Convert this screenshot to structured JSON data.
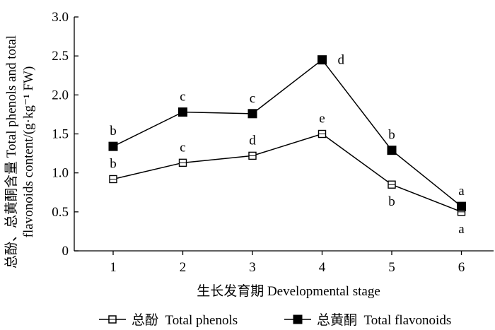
{
  "chart_data": {
    "type": "line",
    "categories": [
      "1",
      "2",
      "3",
      "4",
      "5",
      "6"
    ],
    "series": [
      {
        "name": "总酚  Total phenols",
        "marker": "open-square",
        "values": [
          0.92,
          1.13,
          1.22,
          1.5,
          0.85,
          0.5
        ],
        "letters": [
          "b",
          "c",
          "d",
          "e",
          "b",
          "a"
        ],
        "letter_placement": [
          "above",
          "above",
          "above",
          "above",
          "below",
          "below"
        ]
      },
      {
        "name": "总黄酮  Total flavonoids",
        "marker": "filled-square",
        "values": [
          1.34,
          1.78,
          1.76,
          2.45,
          1.29,
          0.57
        ],
        "letters": [
          "b",
          "c",
          "c",
          "d",
          "b",
          "a"
        ],
        "letter_placement": [
          "above",
          "above",
          "above",
          "right",
          "above",
          "above"
        ]
      }
    ],
    "yticks": [
      "0",
      "0.5",
      "1.0",
      "1.5",
      "2.0",
      "2.5",
      "3.0"
    ],
    "ylim": [
      0,
      3.0
    ],
    "xlabel": "生长发育期 Developmental stage",
    "ylabel_line1": "总酚、总黄酮含量 Total phenols and total",
    "ylabel_line2": "flavonoids content/(g·kg⁻¹ FW)",
    "legend_position": "bottom"
  }
}
